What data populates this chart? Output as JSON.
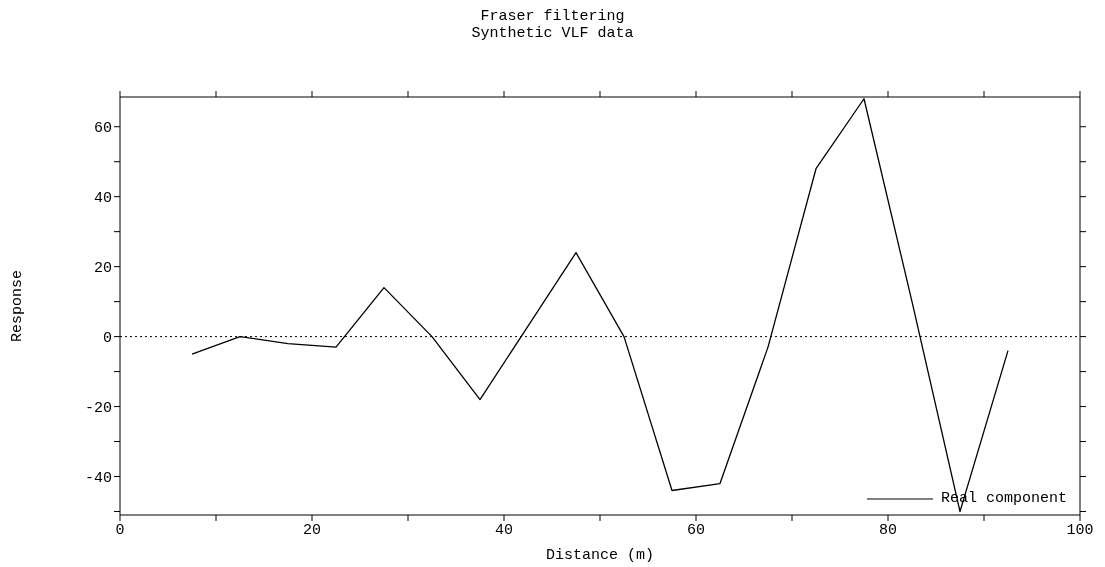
{
  "chart_data": {
    "type": "line",
    "title": "Fraser filtering",
    "subtitle": "Synthetic VLF data",
    "xlabel": "Distance (m)",
    "ylabel": "Response",
    "x": [
      7.5,
      12.5,
      17.5,
      22.5,
      27.5,
      32.5,
      37.5,
      42.5,
      47.5,
      52.5,
      57.5,
      62.5,
      67.5,
      72.5,
      77.5,
      82.5,
      87.5,
      92.5
    ],
    "series": [
      {
        "name": "Real component",
        "color": "#000000",
        "values": [
          -5,
          0,
          -2,
          -3,
          14,
          0,
          -18,
          3,
          24,
          0,
          -44,
          -42,
          -3,
          48,
          68,
          10,
          -50,
          -4
        ]
      }
    ],
    "xlim": [
      0,
      100
    ],
    "xticks": [
      0,
      {
        "value": 10,
        "label": null
      },
      20,
      {
        "value": 30,
        "label": null
      },
      40,
      {
        "value": 50,
        "label": null
      },
      60,
      {
        "value": 70,
        "label": null
      },
      80,
      {
        "value": 90,
        "label": null
      },
      100
    ],
    "ylim": [
      -51,
      68.5
    ],
    "yticks": [
      {
        "value": -50,
        "label": null
      },
      -40,
      {
        "value": -30,
        "label": null
      },
      -20,
      {
        "value": -10,
        "label": null
      },
      0,
      {
        "value": 10,
        "label": null
      },
      20,
      {
        "value": 30,
        "label": null
      },
      40,
      {
        "value": 50,
        "label": null
      },
      60
    ],
    "ref_lines": [
      {
        "axis": "y",
        "value": 0,
        "line_style": "dotted",
        "color": "#000000"
      }
    ],
    "legend": "bottom right",
    "marker": "none",
    "line_style": "solid",
    "grid": false
  }
}
